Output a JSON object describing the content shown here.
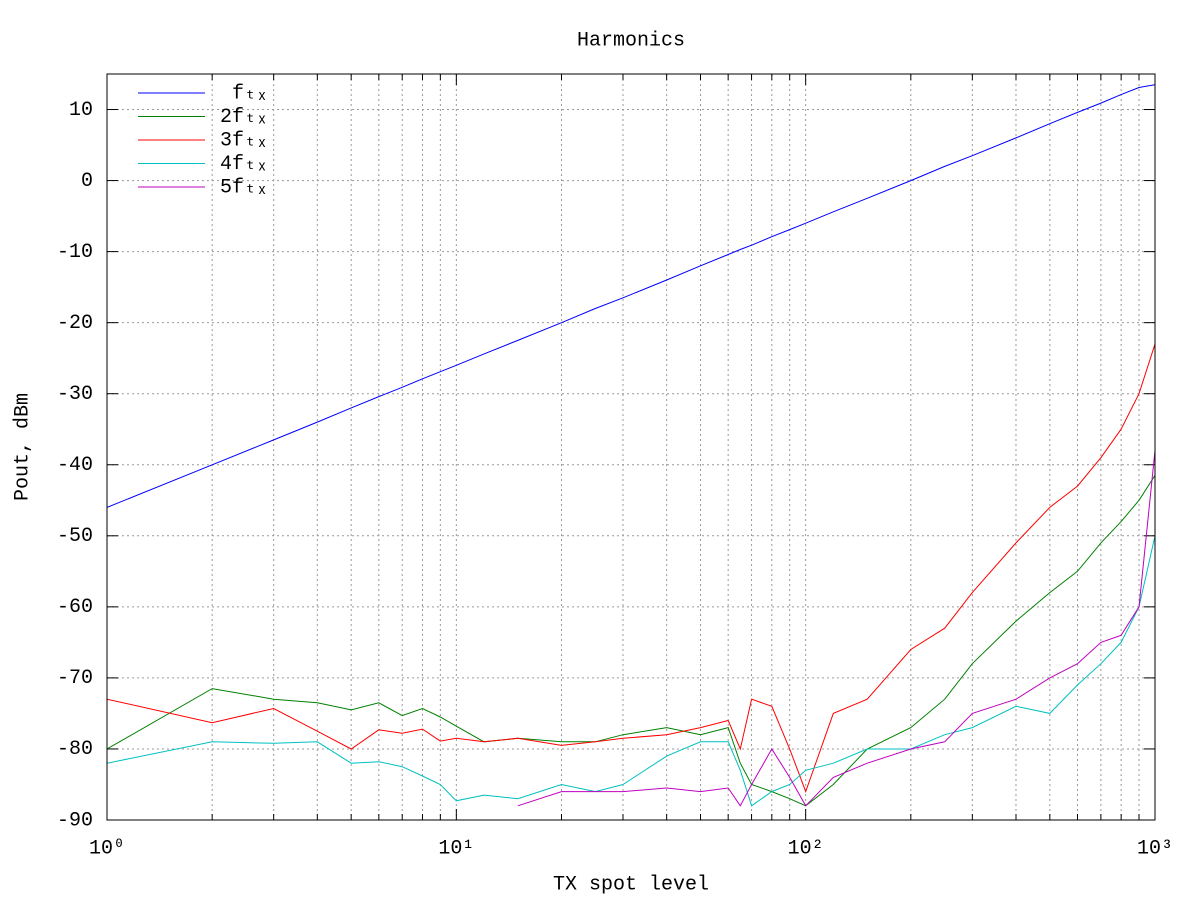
{
  "chart_data": {
    "type": "line",
    "title": "Harmonics",
    "xlabel": "TX spot level",
    "ylabel": "Pout, dBm",
    "xlog": true,
    "grid": true,
    "legend": "top-left",
    "xlim": [
      1,
      1000
    ],
    "ylim": [
      -90,
      15
    ],
    "xticks": [
      {
        "value": 1,
        "label": "10⁰"
      },
      {
        "value": 10,
        "label": "10¹"
      },
      {
        "value": 100,
        "label": "10²"
      },
      {
        "value": 1000,
        "label": "10³"
      }
    ],
    "xminorticks": [
      2,
      3,
      4,
      5,
      6,
      7,
      8,
      9,
      20,
      30,
      40,
      50,
      60,
      70,
      80,
      90,
      200,
      300,
      400,
      500,
      600,
      700,
      800,
      900
    ],
    "yticks": [
      -90,
      -80,
      -70,
      -60,
      -50,
      -40,
      -30,
      -20,
      -10,
      0,
      10
    ],
    "x": [
      1,
      2,
      3,
      4,
      5,
      6,
      7,
      8,
      9,
      10,
      12,
      15,
      20,
      25,
      30,
      40,
      50,
      60,
      65,
      70,
      80,
      90,
      100,
      120,
      150,
      200,
      250,
      300,
      400,
      500,
      600,
      700,
      800,
      900,
      1000
    ],
    "series": [
      {
        "name": "fₜₓ",
        "color": "#0000ff",
        "values": [
          -46,
          -40,
          -36.5,
          -34,
          -32,
          -30.4,
          -29.1,
          -27.9,
          -26.9,
          -26,
          -24.4,
          -22.5,
          -20,
          -18,
          -16.5,
          -14,
          -12,
          -10.4,
          -9.7,
          -9.1,
          -7.9,
          -6.9,
          -6,
          -4.4,
          -2.5,
          0,
          2,
          3.5,
          6,
          8,
          9.6,
          10.9,
          12.1,
          13.1,
          13.5
        ]
      },
      {
        "name": "2fₜₓ",
        "color": "#008000",
        "values": [
          -80,
          -71.5,
          -73,
          -73.5,
          -74.5,
          -73.5,
          -75.3,
          -74.3,
          -75.5,
          -76.8,
          -79,
          -78.5,
          -79,
          -79,
          -78,
          -77,
          -78,
          -77,
          -82,
          -85,
          -86,
          -87,
          -88,
          -85,
          -80,
          -77,
          -73,
          -68,
          -62,
          -58,
          -55,
          -51,
          -48,
          -45,
          -41.5
        ]
      },
      {
        "name": "3fₜₓ",
        "color": "#ff0000",
        "values": [
          -73,
          -76.3,
          -74.3,
          -77.5,
          -80,
          -77.3,
          -77.8,
          -77.2,
          -78.9,
          -78.5,
          -79,
          -78.5,
          -79.5,
          -79,
          -78.5,
          -78,
          -77,
          -76,
          -80,
          -73,
          -74,
          -80,
          -86,
          -75,
          -73,
          -66,
          -63,
          -58,
          -51,
          -46,
          -43,
          -39,
          -35,
          -30,
          -23
        ]
      },
      {
        "name": "4fₜₓ",
        "color": "#00c0c0",
        "values": [
          -82,
          -79,
          -79.2,
          -79,
          -82,
          -81.8,
          -82.5,
          -83.8,
          -85,
          -87.3,
          -86.5,
          -87,
          -85,
          -86,
          -85,
          -81,
          -79,
          -79,
          -83,
          -88,
          -86,
          -85,
          -83,
          -82,
          -80,
          -80,
          -78,
          -77,
          -74,
          -75,
          -71,
          -68,
          -65,
          -60,
          -50
        ]
      },
      {
        "name": "5fₜₓ",
        "color": "#c000c0",
        "values": [
          null,
          null,
          null,
          null,
          null,
          null,
          null,
          null,
          null,
          null,
          null,
          -88,
          -86,
          -86,
          -86,
          -85.5,
          -86,
          -85.5,
          -88,
          -85,
          -80,
          -84,
          -88,
          -84,
          -82,
          -80,
          -79,
          -75,
          -73,
          -70,
          -68,
          -65,
          -64,
          -60,
          -38
        ]
      }
    ]
  }
}
